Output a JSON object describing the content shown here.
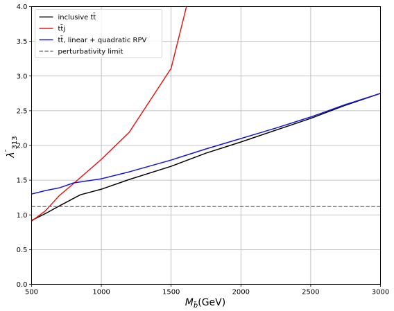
{
  "chart_data": {
    "type": "line",
    "xlabel": "M_b̃(GeV)",
    "xlabel_parts": {
      "base": "M",
      "sub": "b̃",
      "rest": "(GeV)"
    },
    "ylabel": "λ″313",
    "ylabel_parts": {
      "base": "λ",
      "sup": "″",
      "sub": "313"
    },
    "xlim": [
      500,
      3000
    ],
    "ylim": [
      0.0,
      4.0
    ],
    "xticks": [
      500,
      1000,
      1500,
      2000,
      2500,
      3000
    ],
    "yticks": [
      0.0,
      0.5,
      1.0,
      1.5,
      2.0,
      2.5,
      3.0,
      3.5,
      4.0
    ],
    "xtick_labels": [
      "500",
      "1000",
      "1500",
      "2000",
      "2500",
      "3000"
    ],
    "ytick_labels": [
      "0.0",
      "0.5",
      "1.0",
      "1.5",
      "2.0",
      "2.5",
      "3.0",
      "3.5",
      "4.0"
    ],
    "grid": true,
    "legend_position": "top-left",
    "series": [
      {
        "name": "inclusive tt̄",
        "color": "#000000",
        "style": "solid",
        "x": [
          500,
          600,
          700,
          850,
          1000,
          1200,
          1500,
          1750,
          2000,
          2250,
          2500,
          2750,
          3000
        ],
        "y": [
          0.92,
          1.02,
          1.13,
          1.29,
          1.37,
          1.51,
          1.7,
          1.89,
          2.05,
          2.22,
          2.39,
          2.58,
          2.75
        ]
      },
      {
        "name": "tt̄j",
        "color": "#e31a1c",
        "style": "solid",
        "x": [
          500,
          600,
          700,
          800,
          1000,
          1200,
          1500,
          1610
        ],
        "y": [
          0.91,
          1.06,
          1.28,
          1.45,
          1.8,
          2.19,
          3.11,
          4.0
        ]
      },
      {
        "name": "tt̄, linear + quadratic RPV",
        "color": "#1515d6",
        "style": "solid",
        "x": [
          500,
          600,
          700,
          800,
          1000,
          1200,
          1500,
          1750,
          2000,
          2250,
          2500,
          2750,
          3000
        ],
        "y": [
          1.3,
          1.35,
          1.39,
          1.46,
          1.52,
          1.62,
          1.79,
          1.95,
          2.1,
          2.25,
          2.41,
          2.59,
          2.75
        ]
      },
      {
        "name": "perturbativity limit",
        "color": "#808080",
        "style": "dashed",
        "x": [
          500,
          3000
        ],
        "y": [
          1.12,
          1.12
        ]
      }
    ]
  }
}
